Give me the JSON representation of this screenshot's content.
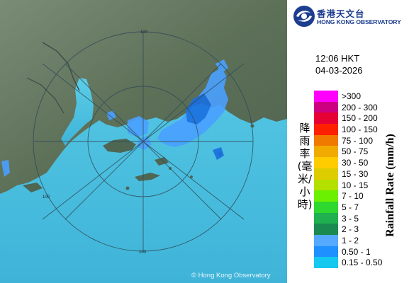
{
  "map": {
    "copyright": "© Hong Kong Observatory",
    "range_label_north": "100",
    "range_label_west": "100",
    "range_label_south": "100",
    "colors": {
      "sea": "#4ec4e6",
      "land": "#5f7560",
      "rings": "#2f4a58",
      "rain_light": "#4aa0ff",
      "rain_medium": "#1a6fe0"
    }
  },
  "branding": {
    "name_zh": "香港天文台",
    "name_en": "HONG KONG OBSERVATORY",
    "logo_icon": "hko-logo-icon"
  },
  "timestamp": {
    "time": "12:06 HKT",
    "date": "04-03-2026"
  },
  "legend": {
    "title_zh": "降雨率(毫米/小時)",
    "title_en": "Rainfall Rate (mm/h)",
    "items": [
      {
        "label": ">300",
        "color": "#ff00ff"
      },
      {
        "label": "200 - 300",
        "color": "#cc0080"
      },
      {
        "label": "150 - 200",
        "color": "#e60033"
      },
      {
        "label": "100 - 150",
        "color": "#ff2000"
      },
      {
        "label": "75 - 100",
        "color": "#f07a00"
      },
      {
        "label": "50 - 75",
        "color": "#f0aa00"
      },
      {
        "label": "30 - 50",
        "color": "#ffcc00"
      },
      {
        "label": "15 - 30",
        "color": "#dccc00"
      },
      {
        "label": "10 - 15",
        "color": "#b4e000"
      },
      {
        "label": "7 - 10",
        "color": "#6af000"
      },
      {
        "label": "5 - 7",
        "color": "#2ed82e"
      },
      {
        "label": "3 - 5",
        "color": "#20b050"
      },
      {
        "label": "2 - 3",
        "color": "#1a8a50"
      },
      {
        "label": "1 - 2",
        "color": "#55aaff"
      },
      {
        "label": "0.50 - 1",
        "color": "#1e90ff"
      },
      {
        "label": "0.15 - 0.50",
        "color": "#14c8f0"
      }
    ]
  }
}
